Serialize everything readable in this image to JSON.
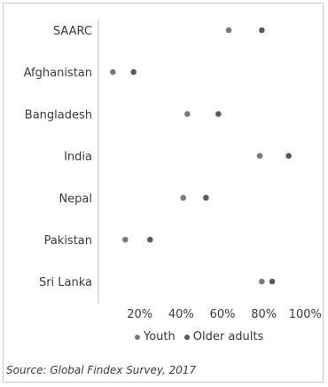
{
  "chart_data": {
    "type": "scatter",
    "categories": [
      "SAARC",
      "Afghanistan",
      "Bangladesh",
      "India",
      "Nepal",
      "Pakistan",
      "Sri Lanka"
    ],
    "series": [
      {
        "name": "Youth",
        "values": [
          63,
          7,
          43,
          78,
          41,
          13,
          79
        ],
        "color": "#7a7a7a"
      },
      {
        "name": "Older adults",
        "values": [
          79,
          17,
          58,
          92,
          52,
          25,
          84
        ],
        "color": "#5a5a5a"
      }
    ],
    "xticks": [
      "20%",
      "40%",
      "60%",
      "80%",
      "100%"
    ],
    "xtick_values": [
      20,
      40,
      60,
      80,
      100
    ],
    "xlim": [
      0,
      105
    ],
    "grid": false,
    "legend_position": "bottom"
  },
  "legend": {
    "youth_label": "Youth",
    "older_label": "Older adults"
  },
  "source": "Source: Global Findex Survey, 2017"
}
